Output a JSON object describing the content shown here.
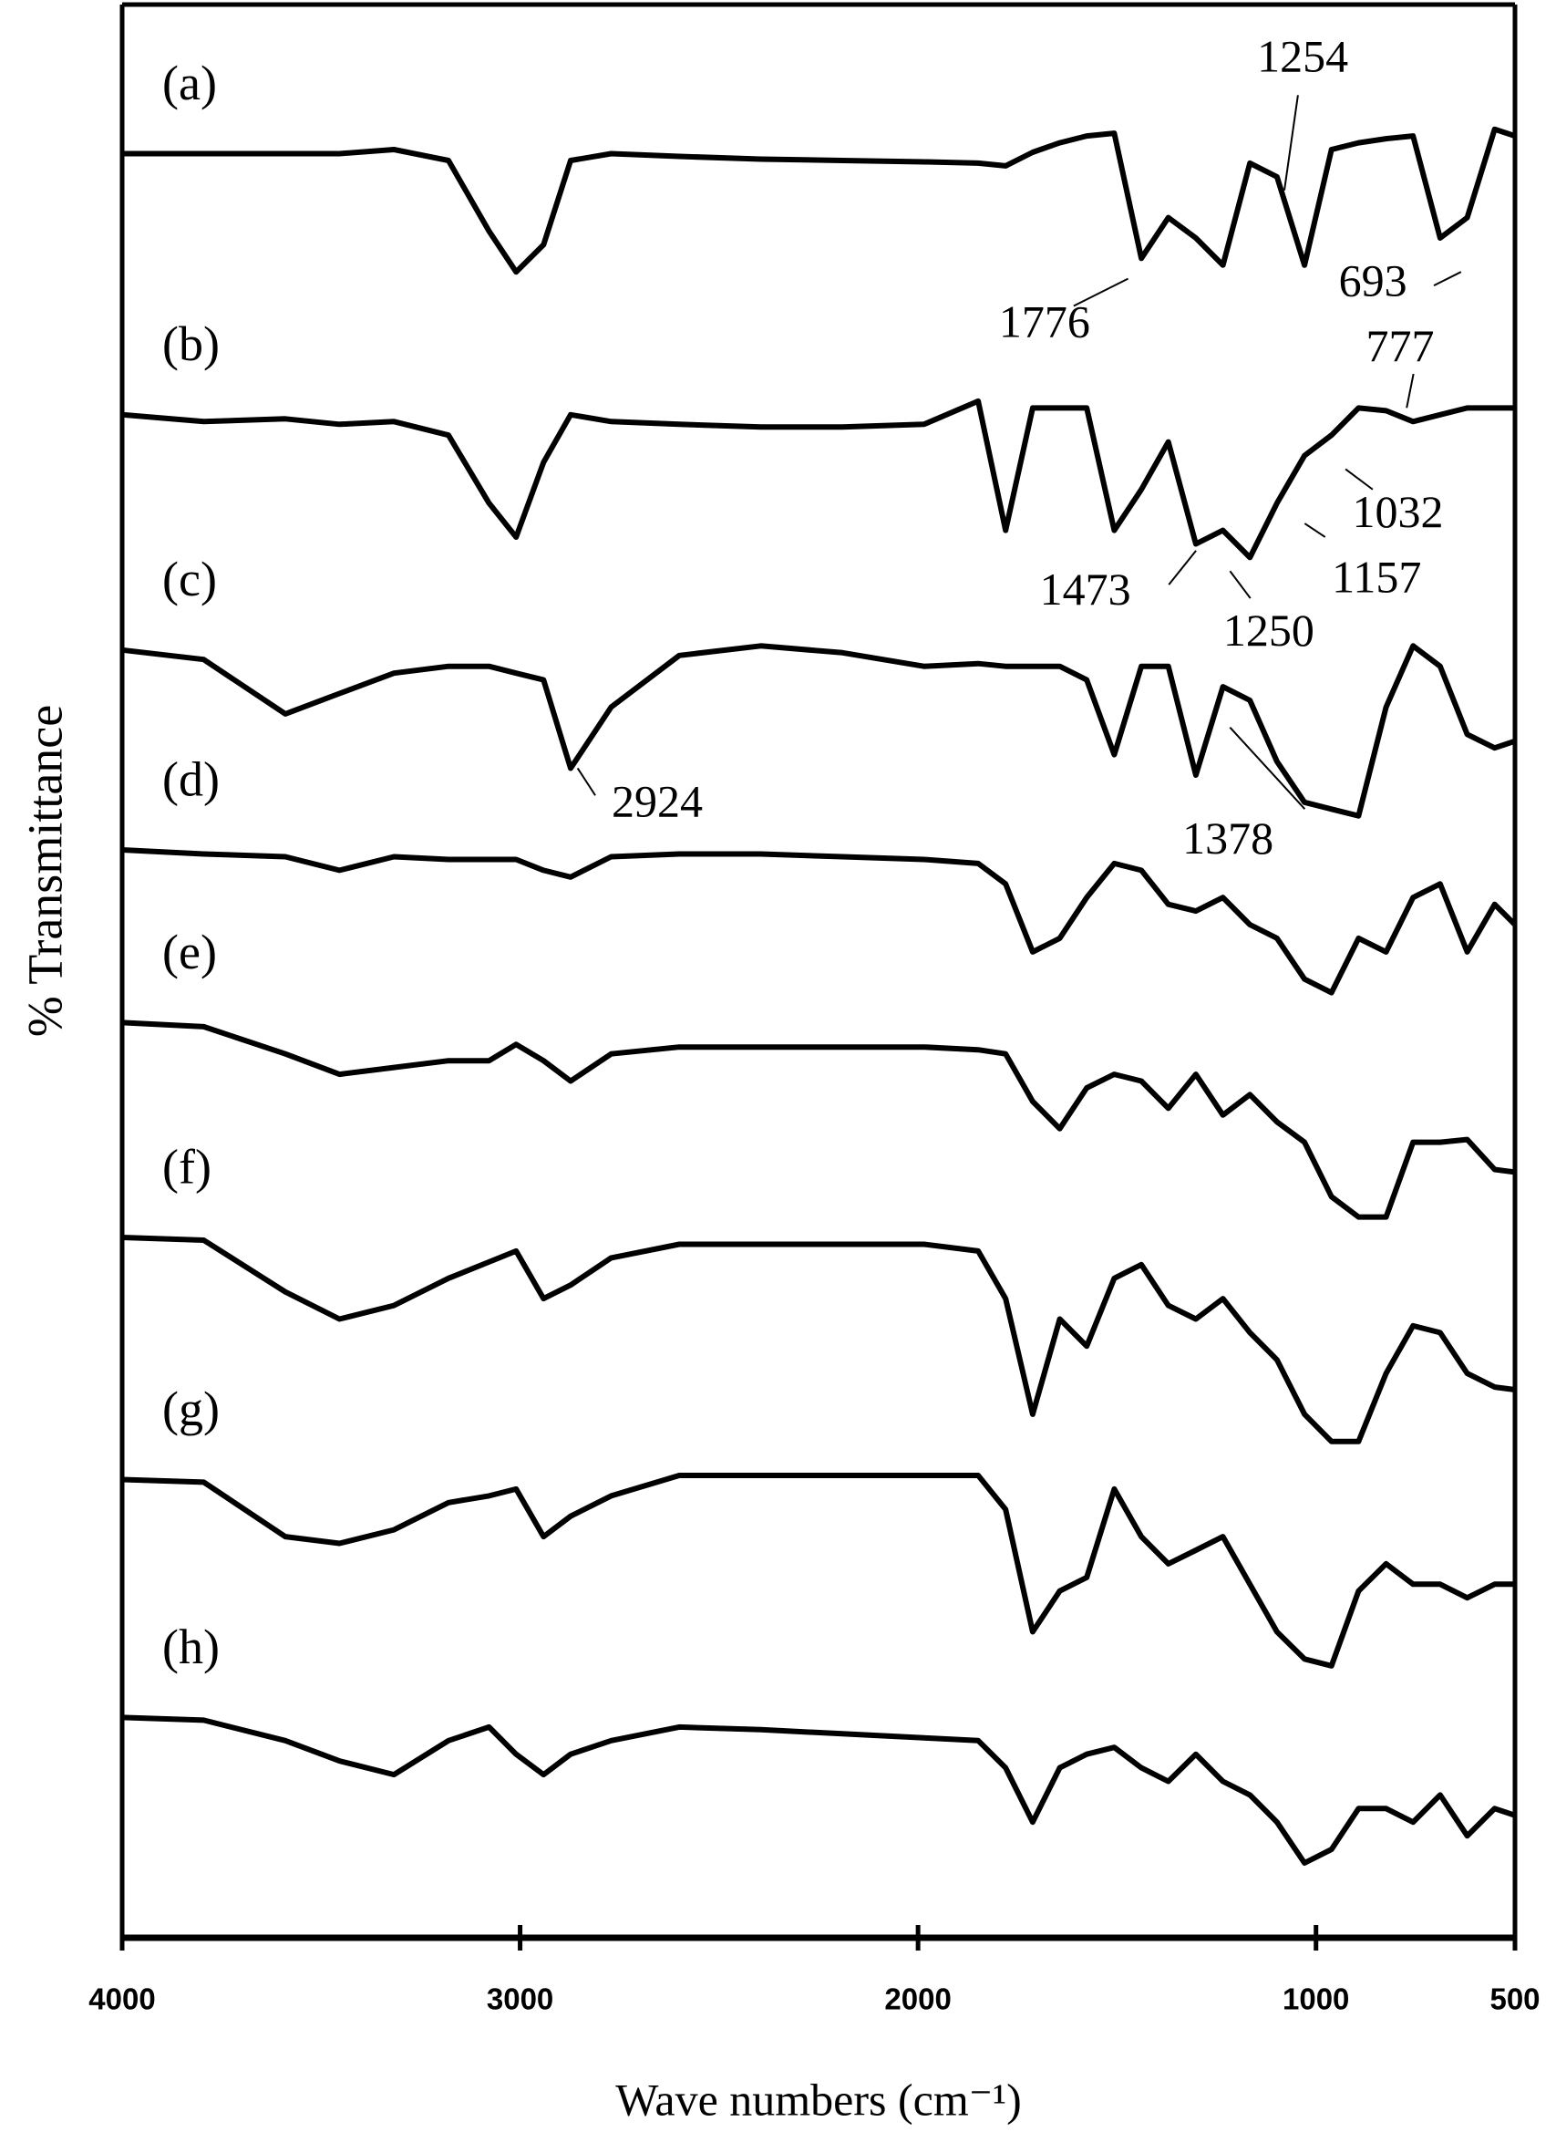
{
  "chart_data": {
    "type": "line",
    "xlabel": "Wave numbers (cm⁻¹)",
    "ylabel": "% Transmittance",
    "xlim": [
      4000,
      500
    ],
    "xticks": [
      4000,
      3000,
      2000,
      1000,
      500
    ],
    "ylim": [
      0,
      142.5
    ],
    "grid": false,
    "x": [
      4000,
      3795,
      3590,
      3454,
      3317,
      3180,
      3078,
      3010,
      2941,
      2873,
      2771,
      2600,
      2395,
      2190,
      1985,
      1849,
      1780,
      1712,
      1644,
      1576,
      1507,
      1439,
      1371,
      1302,
      1234,
      1166,
      1098,
      1029,
      961,
      893,
      824,
      756,
      688,
      620,
      551,
      500
    ],
    "series": [
      {
        "name": "(a)",
        "color": "#000000",
        "values": [
          131.2,
          131.2,
          131.2,
          131.2,
          131.5,
          130.7,
          125.5,
          122.5,
          124.5,
          130.7,
          131.2,
          131,
          130.8,
          130.7,
          130.6,
          130.5,
          130.3,
          131.3,
          132,
          132.5,
          132.7,
          123.5,
          126.5,
          125,
          123,
          130.5,
          129.5,
          123,
          131.5,
          132,
          132.3,
          132.5,
          125,
          126.5,
          133,
          132.5
        ]
      },
      {
        "name": "(b)",
        "color": "#000000",
        "values": [
          112,
          111.5,
          111.7,
          111.3,
          111.5,
          110.5,
          105.5,
          103,
          108.5,
          112,
          111.5,
          111.3,
          111.1,
          111.1,
          111.3,
          113,
          103.5,
          112.5,
          112.5,
          112.5,
          103.5,
          106.5,
          110,
          102.5,
          103.5,
          101.5,
          105.5,
          109,
          110.5,
          112.5,
          112.3,
          111.5,
          112,
          112.5,
          112.5,
          112.5
        ]
      },
      {
        "name": "(c)",
        "color": "#000000",
        "values": [
          94.7,
          94,
          90,
          91.5,
          93,
          93.5,
          93.5,
          93,
          92.5,
          86,
          90.5,
          94.3,
          95,
          94.5,
          93.5,
          93.7,
          93.5,
          93.5,
          93.5,
          92.5,
          87,
          93.5,
          93.5,
          85.5,
          92,
          91,
          86.5,
          83.5,
          83,
          82.5,
          90.5,
          95,
          93.5,
          88.5,
          87.5,
          88
        ]
      },
      {
        "name": "(d)",
        "color": "#000000",
        "values": [
          80,
          79.7,
          79.5,
          78.5,
          79.5,
          79.3,
          79.3,
          79.3,
          78.5,
          78,
          79.5,
          79.7,
          79.7,
          79.5,
          79.3,
          79,
          77.5,
          72.5,
          73.5,
          76.5,
          79,
          78.5,
          76,
          75.5,
          76.5,
          74.5,
          73.5,
          70.5,
          69.5,
          73.5,
          72.5,
          76.5,
          77.5,
          72.5,
          76,
          74.5
        ]
      },
      {
        "name": "(e)",
        "color": "#000000",
        "values": [
          67.3,
          67,
          65,
          63.5,
          64,
          64.5,
          64.5,
          65.7,
          64.5,
          63,
          65,
          65.5,
          65.5,
          65.5,
          65.5,
          65.3,
          65,
          61.5,
          59.5,
          62.5,
          63.5,
          63,
          61,
          63.5,
          60.5,
          62,
          60,
          58.5,
          54.5,
          53,
          53,
          58.5,
          58.5,
          58.7,
          56.5,
          56.3
        ]
      },
      {
        "name": "(f)",
        "color": "#000000",
        "values": [
          51.5,
          51.3,
          47.5,
          45.5,
          46.5,
          48.5,
          49.7,
          50.5,
          47,
          48,
          50,
          51,
          51,
          51,
          51,
          50.5,
          47,
          38.5,
          45.5,
          43.5,
          48.5,
          49.5,
          46.5,
          45.5,
          47,
          44.5,
          42.5,
          38.5,
          36.5,
          36.5,
          41.5,
          45,
          44.5,
          41.5,
          40.5,
          40.3
        ]
      },
      {
        "name": "(g)",
        "color": "#000000",
        "values": [
          33.7,
          33.5,
          29.5,
          29,
          30,
          32,
          32.5,
          33,
          29.5,
          31,
          32.5,
          34,
          34,
          34,
          34,
          34,
          31.5,
          22.5,
          25.5,
          26.5,
          33,
          29.5,
          27.5,
          28.5,
          29.5,
          26,
          22.5,
          20.5,
          20,
          25.5,
          27.5,
          26,
          26,
          25,
          26,
          26
        ]
      },
      {
        "name": "(h)",
        "color": "#000000",
        "values": [
          16.2,
          16,
          14.5,
          13,
          12,
          14.5,
          15.5,
          13.5,
          12,
          13.5,
          14.5,
          15.5,
          15.3,
          15,
          14.7,
          14.5,
          12.5,
          8.5,
          12.5,
          13.5,
          14,
          12.5,
          11.5,
          13.5,
          11.5,
          10.5,
          8.5,
          5.5,
          6.5,
          9.5,
          9.5,
          8.5,
          10.5,
          7.5,
          9.5,
          9
        ]
      }
    ],
    "annotations": [
      "1254",
      "1776",
      "693",
      "777",
      "1032",
      "1157",
      "1473",
      "1250",
      "2924",
      "1378"
    ]
  }
}
